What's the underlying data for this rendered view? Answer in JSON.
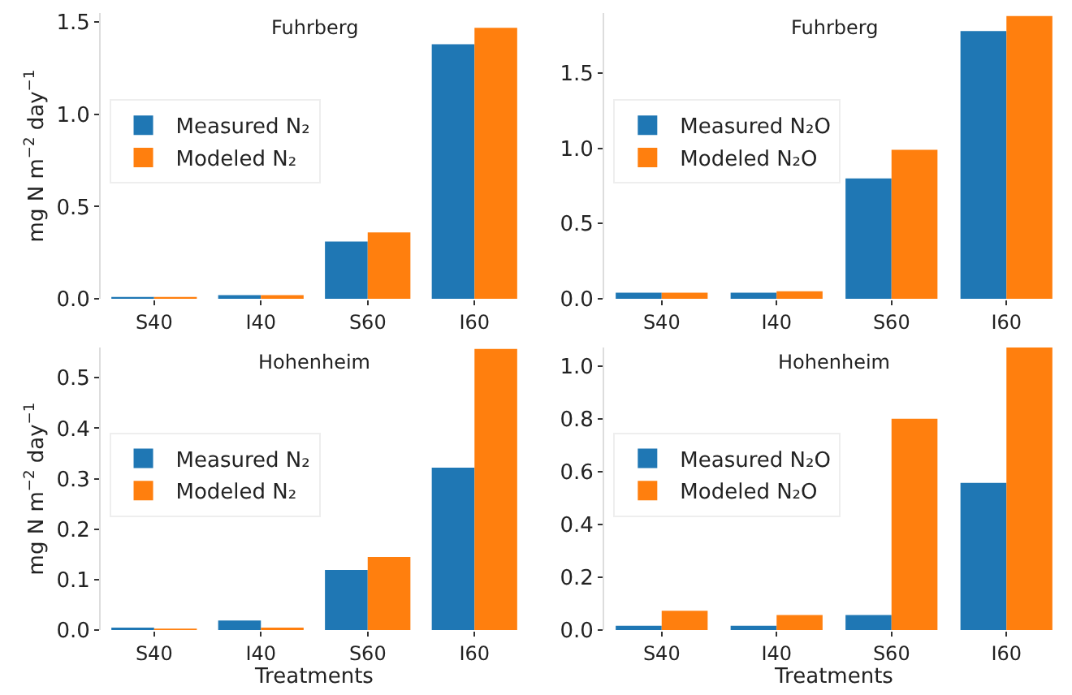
{
  "chart_data": [
    {
      "type": "bar",
      "title": "Fuhrberg",
      "ylabel": "mg N m$^{−2}$ day$^{−1}$",
      "categories": [
        "S40",
        "I40",
        "S60",
        "I60"
      ],
      "series": [
        {
          "name": "Measured N₂",
          "color": "#1f77b4",
          "values": [
            0.01,
            0.02,
            0.31,
            1.38
          ]
        },
        {
          "name": "Modeled N₂",
          "color": "#ff7f0e",
          "values": [
            0.01,
            0.02,
            0.36,
            1.47
          ]
        }
      ],
      "ylim": [
        0,
        1.55
      ],
      "yticks": [
        {
          "value": 0,
          "label": "0.0"
        },
        {
          "value": 0.5,
          "label": "0.5"
        },
        {
          "value": 1,
          "label": "1.0"
        },
        {
          "value": 1.5,
          "label": "1.5"
        }
      ],
      "legend": "left",
      "grid": false
    },
    {
      "type": "bar",
      "title": "Fuhrberg",
      "categories": [
        "S40",
        "I40",
        "S60",
        "I60"
      ],
      "series": [
        {
          "name": "Measured N₂O",
          "color": "#1f77b4",
          "values": [
            0.04,
            0.04,
            0.8,
            1.78
          ]
        },
        {
          "name": "Modeled N₂O",
          "color": "#ff7f0e",
          "values": [
            0.04,
            0.05,
            0.99,
            1.88
          ]
        }
      ],
      "ylim": [
        0,
        1.9
      ],
      "yticks": [
        {
          "value": 0,
          "label": "0.0"
        },
        {
          "value": 0.5,
          "label": "0.5"
        },
        {
          "value": 1,
          "label": "1.0"
        },
        {
          "value": 1.5,
          "label": "1.5"
        }
      ],
      "legend": "left",
      "grid": false
    },
    {
      "type": "bar",
      "title": "Hohenheim",
      "ylabel": "mg N m$^{−2}$ day$^{−1}$",
      "xlabel": "Treatments",
      "categories": [
        "S40",
        "I40",
        "S60",
        "I60"
      ],
      "series": [
        {
          "name": "Measured N₂",
          "color": "#1f77b4",
          "values": [
            0.005,
            0.019,
            0.119,
            0.322
          ]
        },
        {
          "name": "Modeled N₂",
          "color": "#ff7f0e",
          "values": [
            0.003,
            0.005,
            0.145,
            0.557
          ]
        }
      ],
      "ylim": [
        0,
        0.56
      ],
      "yticks": [
        {
          "value": 0,
          "label": "0.0"
        },
        0.1,
        0.2,
        0.3,
        0.4,
        0.5
      ],
      "legend": "left",
      "grid": false
    },
    {
      "type": "bar",
      "title": "Hohenheim",
      "xlabel": "Treatments",
      "categories": [
        "S40",
        "I40",
        "S60",
        "I60"
      ],
      "series": [
        {
          "name": "Measured N₂O",
          "color": "#1f77b4",
          "values": [
            0.016,
            0.016,
            0.057,
            0.557
          ]
        },
        {
          "name": "Modeled N₂O",
          "color": "#ff7f0e",
          "values": [
            0.073,
            0.057,
            0.8,
            1.07
          ]
        }
      ],
      "ylim": [
        0,
        1.07
      ],
      "yticks": [
        {
          "value": 0,
          "label": "0.0"
        },
        0.2,
        0.4,
        0.6,
        0.8,
        {
          "value": 1,
          "label": "1.0"
        }
      ],
      "legend": "left",
      "grid": false
    }
  ]
}
